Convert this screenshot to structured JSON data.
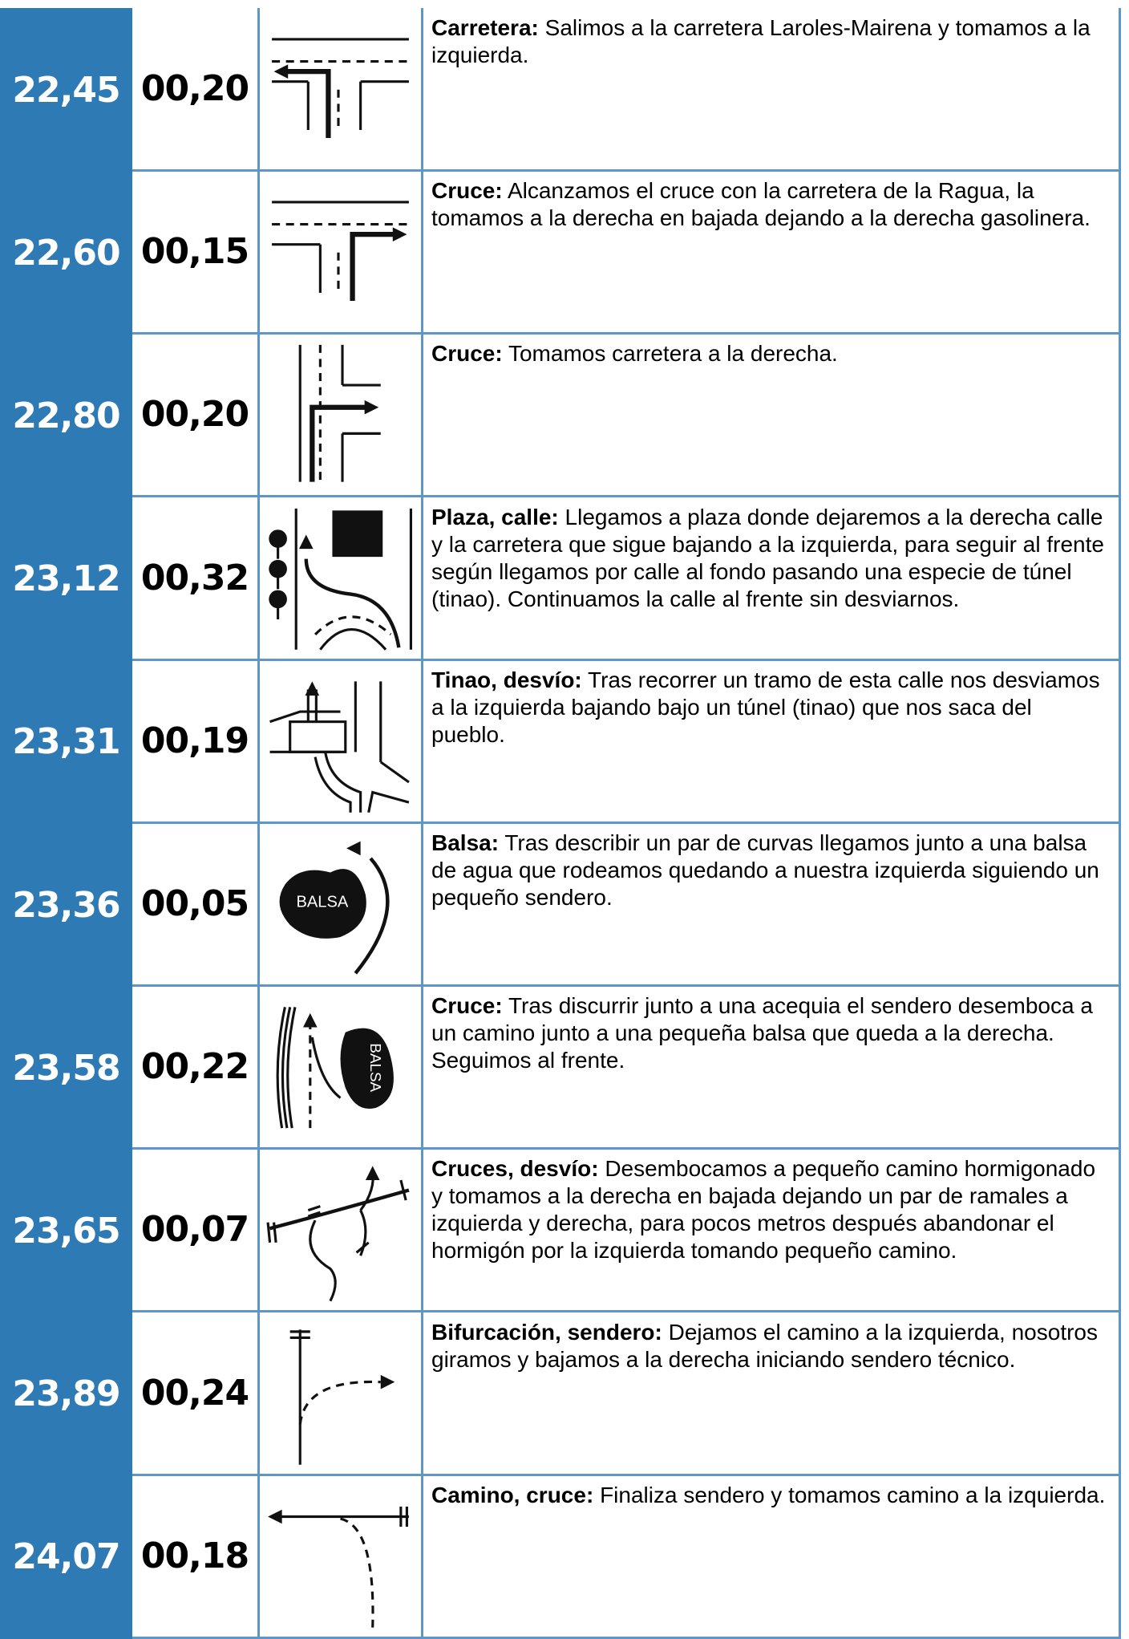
{
  "rows": [
    {
      "km": "22,45",
      "partial": "00,20",
      "title": "Carretera:",
      "text": "Salimos a la carretera Laroles-Mairena y tomamos a la izquierda."
    },
    {
      "km": "22,60",
      "partial": "00,15",
      "title": "Cruce:",
      "text": "Alcanzamos el cruce con la carretera de la Ragua, la tomamos a la derecha en bajada dejando a la derecha gasolinera."
    },
    {
      "km": "22,80",
      "partial": "00,20",
      "title": "Cruce:",
      "text": "Tomamos carretera a la derecha."
    },
    {
      "km": "23,12",
      "partial": "00,32",
      "title": "Plaza, calle:",
      "text": "Llegamos a plaza donde dejaremos a la derecha calle y la carretera que sigue bajando a la izquierda, para seguir al frente según llegamos por calle al fondo pasando una especie de túnel (tinao). Continuamos la calle al frente sin desviarnos."
    },
    {
      "km": "23,31",
      "partial": "00,19",
      "title": "Tinao, desvío:",
      "text": "Tras recorrer un tramo de esta calle nos desviamos a la izquierda bajando bajo un túnel (tinao) que nos saca del pueblo."
    },
    {
      "km": "23,36",
      "partial": "00,05",
      "title": "Balsa:",
      "text": "Tras describir un par de curvas llegamos junto a una balsa de agua que rodeamos quedando a nuestra izquierda siguiendo un pequeño sendero.",
      "icon_label": "BALSA"
    },
    {
      "km": "23,58",
      "partial": "00,22",
      "title": "Cruce:",
      "text": "Tras discurrir junto a una acequia el sendero desemboca a un camino junto a una pequeña balsa que queda a la derecha. Seguimos al frente.",
      "icon_label": "BALSA"
    },
    {
      "km": "23,65",
      "partial": "00,07",
      "title": "Cruces, desvío:",
      "text": "Desembocamos a pequeño camino hormigonado y tomamos a la derecha en bajada dejando un par de ramales a izquierda y derecha, para pocos metros después abandonar el hormigón por la izquierda tomando pequeño camino."
    },
    {
      "km": "23,89",
      "partial": "00,24",
      "title": "Bifurcación, sendero:",
      "text": "Dejamos el camino a la izquierda, nosotros giramos y bajamos a la derecha iniciando sendero técnico."
    },
    {
      "km": "24,07",
      "partial": "00,18",
      "title": "Camino, cruce:",
      "text": "Finaliza sendero y tomamos camino a la izquierda."
    }
  ]
}
